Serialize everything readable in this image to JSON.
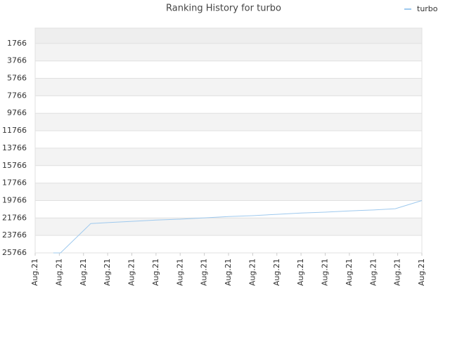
{
  "chart_data": {
    "type": "line",
    "title": "Ranking History for turbo",
    "x": [
      0.75,
      1.05,
      2.3,
      3.0,
      4.0,
      5.0,
      6.0,
      7.0,
      8.0,
      9.0,
      10.0,
      11.0,
      12.0,
      13.0,
      14.0,
      14.9,
      16.0
    ],
    "series": [
      {
        "name": "turbo",
        "color": "#9ec9ee",
        "values": [
          25766,
          25766,
          22400,
          22300,
          22150,
          22000,
          21900,
          21750,
          21600,
          21500,
          21350,
          21200,
          21100,
          20950,
          20850,
          20700,
          19766
        ]
      }
    ],
    "xlim": [
      0,
      16
    ],
    "xticks": [
      {
        "value": 0,
        "label": "Aug.21"
      },
      {
        "value": 1,
        "label": "Aug.21"
      },
      {
        "value": 2,
        "label": "Aug.21"
      },
      {
        "value": 3,
        "label": "Aug.21"
      },
      {
        "value": 4,
        "label": "Aug.21"
      },
      {
        "value": 5,
        "label": "Aug.21"
      },
      {
        "value": 6,
        "label": "Aug.21"
      },
      {
        "value": 7,
        "label": "Aug.21"
      },
      {
        "value": 8,
        "label": "Aug.21"
      },
      {
        "value": 9,
        "label": "Aug.21"
      },
      {
        "value": 10,
        "label": "Aug.21"
      },
      {
        "value": 11,
        "label": "Aug.21"
      },
      {
        "value": 12,
        "label": "Aug.21"
      },
      {
        "value": 13,
        "label": "Aug.21"
      },
      {
        "value": 14,
        "label": "Aug.21"
      },
      {
        "value": 15,
        "label": "Aug.21"
      },
      {
        "value": 16,
        "label": "Aug.21"
      }
    ],
    "ylim": [
      25766,
      6
    ],
    "yticks": [
      1766,
      3766,
      5766,
      7766,
      9766,
      11766,
      13766,
      15766,
      17766,
      19766,
      21766,
      23766,
      25766
    ],
    "grid": true,
    "legend": "top-right"
  }
}
